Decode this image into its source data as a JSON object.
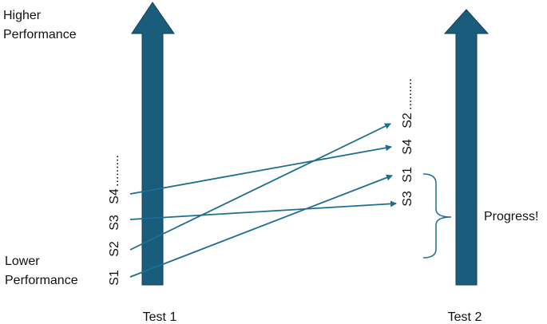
{
  "higher_label": [
    "Higher",
    "Performance"
  ],
  "lower_label": [
    "Lower",
    "Performance"
  ],
  "test1": {
    "label": "Test 1",
    "students": [
      "S1",
      "S2",
      "S3",
      "S4"
    ],
    "more": "........."
  },
  "test2": {
    "label": "Test 2",
    "students": [
      "S3",
      "S1",
      "S4",
      "S2"
    ],
    "more": "........."
  },
  "note": "Progress!"
}
